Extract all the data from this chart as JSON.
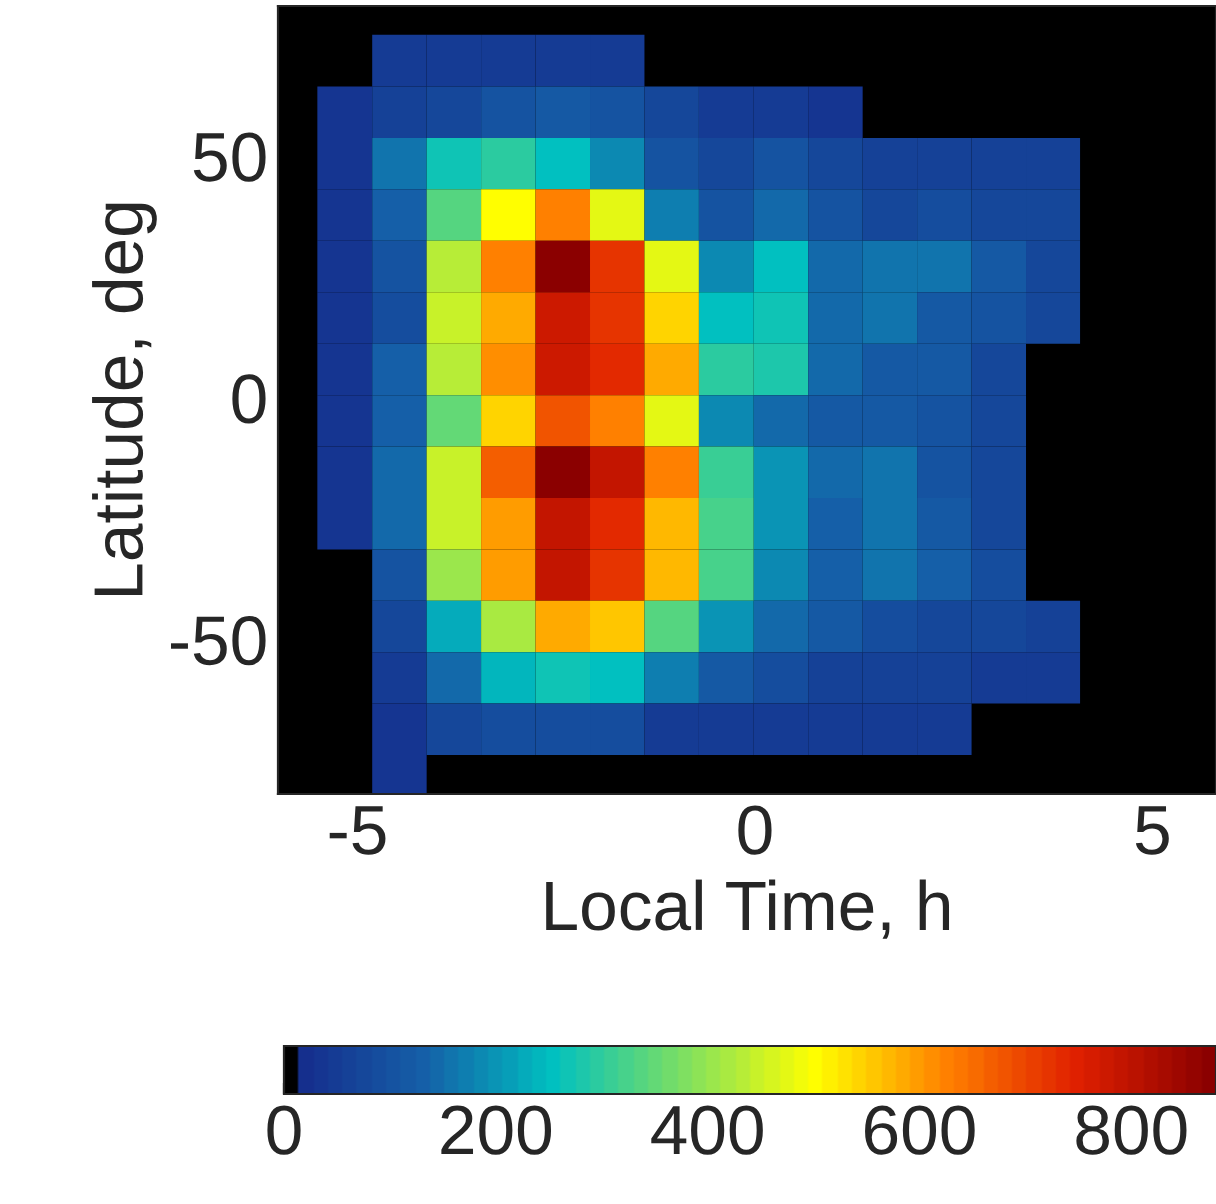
{
  "chart_data": {
    "type": "heatmap",
    "xlabel": "Local Time, h",
    "ylabel": "Latitude, deg",
    "x": [
      -5.16,
      -4.47,
      -3.79,
      -3.1,
      -2.42,
      -1.73,
      -1.05,
      -0.36,
      0.33,
      1.01,
      1.7,
      2.38,
      3.07,
      3.75
    ],
    "y": [
      69.7,
      59.0,
      48.4,
      37.8,
      27.1,
      16.5,
      5.8,
      -4.8,
      -15.4,
      -26.1,
      -36.7,
      -47.4,
      -58.0,
      -68.6,
      -79.3
    ],
    "cells": [
      [
        null,
        50,
        50,
        50,
        50,
        50,
        null,
        null,
        null,
        null,
        null,
        null,
        null,
        null
      ],
      [
        40,
        60,
        70,
        100,
        110,
        100,
        70,
        50,
        50,
        40,
        null,
        null,
        null,
        null
      ],
      [
        40,
        160,
        270,
        300,
        250,
        180,
        100,
        80,
        100,
        80,
        60,
        60,
        60,
        60
      ],
      [
        40,
        130,
        330,
        500,
        620,
        470,
        170,
        100,
        150,
        100,
        80,
        90,
        80,
        80
      ],
      [
        40,
        100,
        430,
        620,
        870,
        720,
        470,
        180,
        250,
        140,
        160,
        160,
        110,
        80
      ],
      [
        40,
        90,
        450,
        580,
        780,
        720,
        540,
        250,
        270,
        150,
        160,
        120,
        100,
        80
      ],
      [
        40,
        130,
        430,
        610,
        780,
        740,
        590,
        290,
        280,
        150,
        120,
        120,
        80,
        null
      ],
      [
        40,
        130,
        350,
        540,
        680,
        620,
        470,
        190,
        150,
        120,
        120,
        100,
        70,
        null
      ],
      [
        40,
        140,
        450,
        660,
        870,
        790,
        630,
        310,
        200,
        150,
        160,
        100,
        70,
        null
      ],
      [
        40,
        140,
        450,
        600,
        790,
        730,
        570,
        320,
        200,
        130,
        160,
        120,
        70,
        null
      ],
      [
        null,
        100,
        400,
        600,
        790,
        720,
        570,
        320,
        190,
        130,
        160,
        130,
        90,
        null
      ],
      [
        null,
        80,
        230,
        420,
        580,
        550,
        330,
        200,
        150,
        110,
        90,
        80,
        70,
        60
      ],
      [
        null,
        50,
        150,
        240,
        270,
        260,
        170,
        110,
        90,
        60,
        60,
        60,
        50,
        50
      ],
      [
        null,
        40,
        80,
        90,
        90,
        90,
        50,
        50,
        50,
        50,
        50,
        50,
        null,
        null
      ],
      [
        null,
        40,
        null,
        null,
        null,
        null,
        null,
        null,
        null,
        null,
        null,
        null,
        null,
        null
      ]
    ],
    "xlim": [
      -6,
      5.8
    ],
    "ylim": [
      -82,
      81
    ],
    "xticks": [
      -5,
      0,
      5
    ],
    "yticks": [
      -50,
      0,
      50
    ],
    "clim": [
      0,
      880
    ],
    "cticks": [
      0,
      200,
      400,
      600,
      800
    ]
  }
}
